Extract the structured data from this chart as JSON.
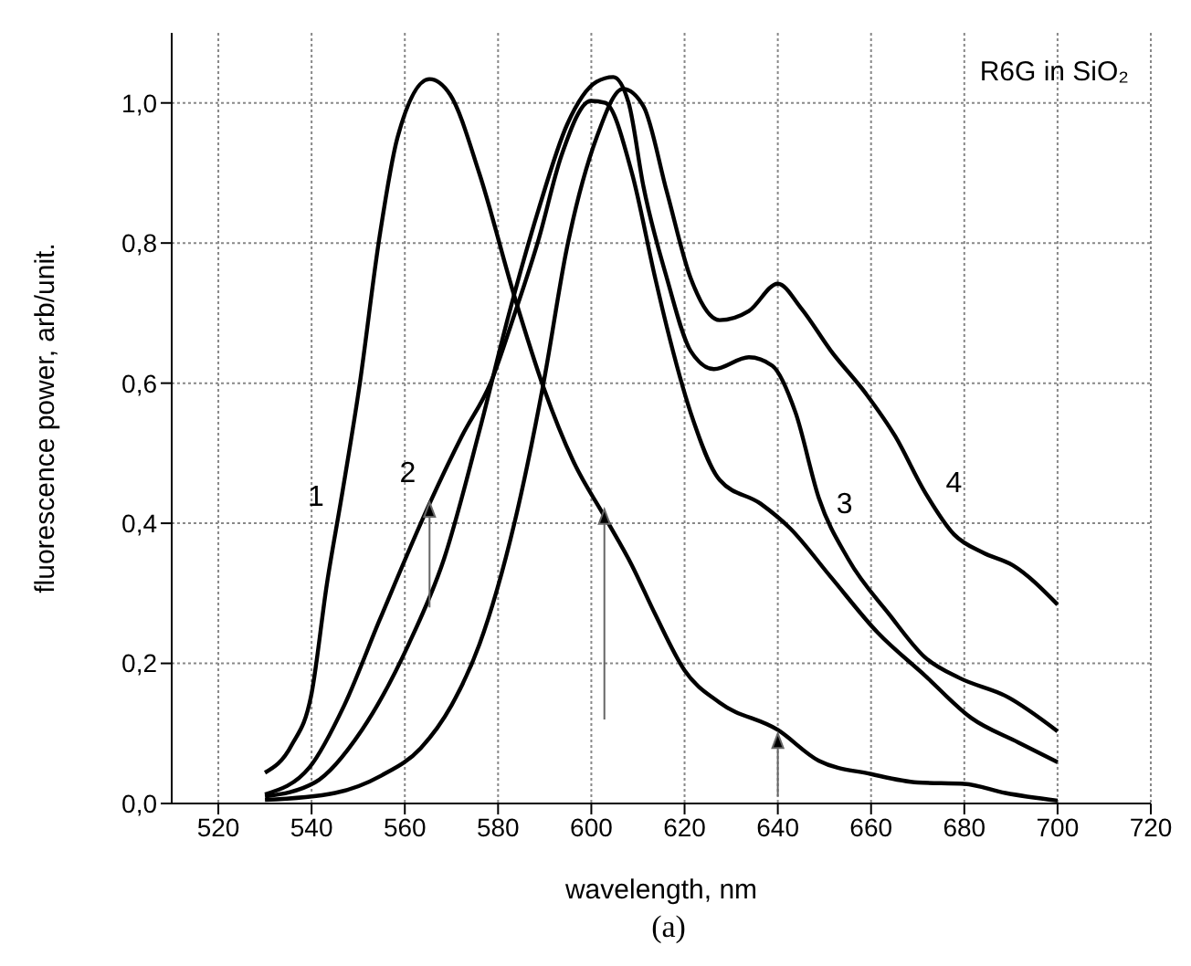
{
  "chart_data": {
    "type": "line",
    "title": "R6G in SiO₂",
    "xlabel": "wavelength, nm",
    "ylabel": "fluorescence power, arb/unit.",
    "annotations": [
      "(a)"
    ],
    "xlim": [
      510,
      720
    ],
    "xticks": [
      520,
      540,
      560,
      580,
      600,
      620,
      640,
      660,
      680,
      700,
      720
    ],
    "ylim": [
      0,
      1.1
    ],
    "yticks": [
      {
        "value": 0,
        "label": "0,0"
      },
      {
        "value": 0.2,
        "label": "0,2"
      },
      {
        "value": 0.4,
        "label": "0,4"
      },
      {
        "value": 0.6,
        "label": "0,6"
      },
      {
        "value": 0.8,
        "label": "0,8"
      },
      {
        "value": 1,
        "label": "1,0"
      }
    ],
    "grid": true,
    "series": [
      {
        "name": "1",
        "color": "#000000",
        "x": [
          530,
          535.7,
          540,
          543.3,
          546.4,
          550.2,
          554.6,
          558.4,
          565.3,
          569.7,
          576,
          583.5,
          589.8,
          596.1,
          602.8,
          608.7,
          613.7,
          620,
          627.5,
          640,
          648.8,
          660,
          670,
          680,
          688.8,
          700
        ],
        "values": [
          0.044,
          0.083,
          0.157,
          0.314,
          0.436,
          0.593,
          0.81,
          0.95,
          1.034,
          1.012,
          0.899,
          0.724,
          0.593,
          0.489,
          0.41,
          0.34,
          0.27,
          0.19,
          0.144,
          0.105,
          0.061,
          0.042,
          0.03,
          0.028,
          0.015,
          0.004
        ]
      },
      {
        "name": "2",
        "color": "#000000",
        "x": [
          530,
          539.6,
          547,
          554.6,
          565.3,
          572.2,
          578.5,
          583.5,
          588.6,
          593.6,
          599.9,
          603,
          608.7,
          613.7,
          616.2,
          621.3,
          627.5,
          636.3,
          642.6,
          651.4,
          661.4,
          671.5,
          681.5,
          691.6,
          700
        ],
        "values": [
          0.013,
          0.052,
          0.14,
          0.262,
          0.428,
          0.524,
          0.602,
          0.698,
          0.803,
          0.925,
          1.003,
          1.0,
          0.9,
          0.75,
          0.68,
          0.558,
          0.462,
          0.428,
          0.393,
          0.323,
          0.244,
          0.183,
          0.122,
          0.087,
          0.059
        ]
      },
      {
        "name": "3",
        "color": "#000000",
        "x": [
          530,
          540.7,
          550.8,
          560.8,
          568.4,
          576,
          582.3,
          588.6,
          594.8,
          601.1,
          604.7,
          608,
          611.2,
          616.2,
          621.3,
          626.3,
          633.8,
          638.8,
          643.8,
          648.8,
          655.1,
          663.9,
          671.5,
          679,
          689,
          700
        ],
        "values": [
          0.01,
          0.03,
          0.105,
          0.227,
          0.349,
          0.532,
          0.698,
          0.846,
          0.969,
          1.03,
          1.037,
          1.0,
          0.88,
          0.75,
          0.646,
          0.62,
          0.637,
          0.625,
          0.558,
          0.436,
          0.349,
          0.27,
          0.209,
          0.179,
          0.153,
          0.103
        ]
      },
      {
        "name": "4",
        "color": "#000000",
        "x": [
          530,
          545,
          555,
          563.4,
          570,
          576,
          583.5,
          589.8,
          594.8,
          601.1,
          606.8,
          611.2,
          616.2,
          621.3,
          627.5,
          633.8,
          640,
          645,
          651.4,
          658.9,
          665.2,
          671.5,
          677.8,
          684,
          690.4,
          700
        ],
        "values": [
          0.005,
          0.015,
          0.04,
          0.079,
          0.14,
          0.227,
          0.4,
          0.602,
          0.794,
          0.95,
          1.02,
          0.995,
          0.873,
          0.75,
          0.69,
          0.703,
          0.742,
          0.707,
          0.646,
          0.585,
          0.524,
          0.445,
          0.384,
          0.358,
          0.34,
          0.284
        ]
      }
    ]
  }
}
